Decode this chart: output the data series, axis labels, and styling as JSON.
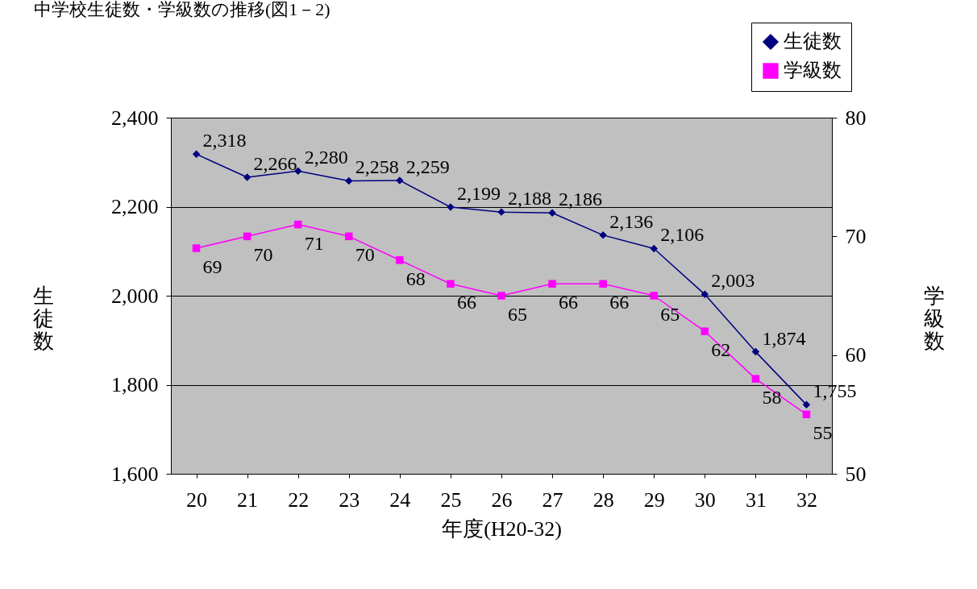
{
  "chart_data": {
    "type": "line",
    "title": "中学校生徒数・学級数の推移(図1－2)",
    "xlabel": "年度(H20-32)",
    "ylabel": "生徒数",
    "y2label": "学級数",
    "categories": [
      "20",
      "21",
      "22",
      "23",
      "24",
      "25",
      "26",
      "27",
      "28",
      "29",
      "30",
      "31",
      "32"
    ],
    "series": [
      {
        "name": "生徒数",
        "color": "#000080",
        "marker": "diamond",
        "values": [
          2318,
          2266,
          2280,
          2258,
          2259,
          2199,
          2188,
          2186,
          2136,
          2106,
          2003,
          1874,
          1755
        ],
        "value_labels": [
          "2,318",
          "2,266",
          "2,280",
          "2,258",
          "2,259",
          "2,199",
          "2,188",
          "2,186",
          "2,136",
          "2,106",
          "2,003",
          "1,874",
          "1,755"
        ]
      },
      {
        "name": "学級数",
        "color": "#ff00ff",
        "marker": "square",
        "axis": "y2",
        "values": [
          69,
          70,
          71,
          70,
          68,
          66,
          65,
          66,
          66,
          65,
          62,
          58,
          55
        ],
        "value_labels": [
          "69",
          "70",
          "71",
          "70",
          "68",
          "66",
          "65",
          "66",
          "66",
          "65",
          "62",
          "58",
          "55"
        ]
      }
    ],
    "ylim": [
      1600,
      2400
    ],
    "yticks": [
      {
        "value": 1600,
        "label": "1,600"
      },
      {
        "value": 1800,
        "label": "1,800"
      },
      {
        "value": 2000,
        "label": "2,000"
      },
      {
        "value": 2200,
        "label": "2,200"
      },
      {
        "value": 2400,
        "label": "2,400"
      }
    ],
    "y2lim": [
      50,
      80
    ],
    "y2ticks": [
      50,
      60,
      70,
      80
    ],
    "grid": "y",
    "legend": "top right"
  }
}
